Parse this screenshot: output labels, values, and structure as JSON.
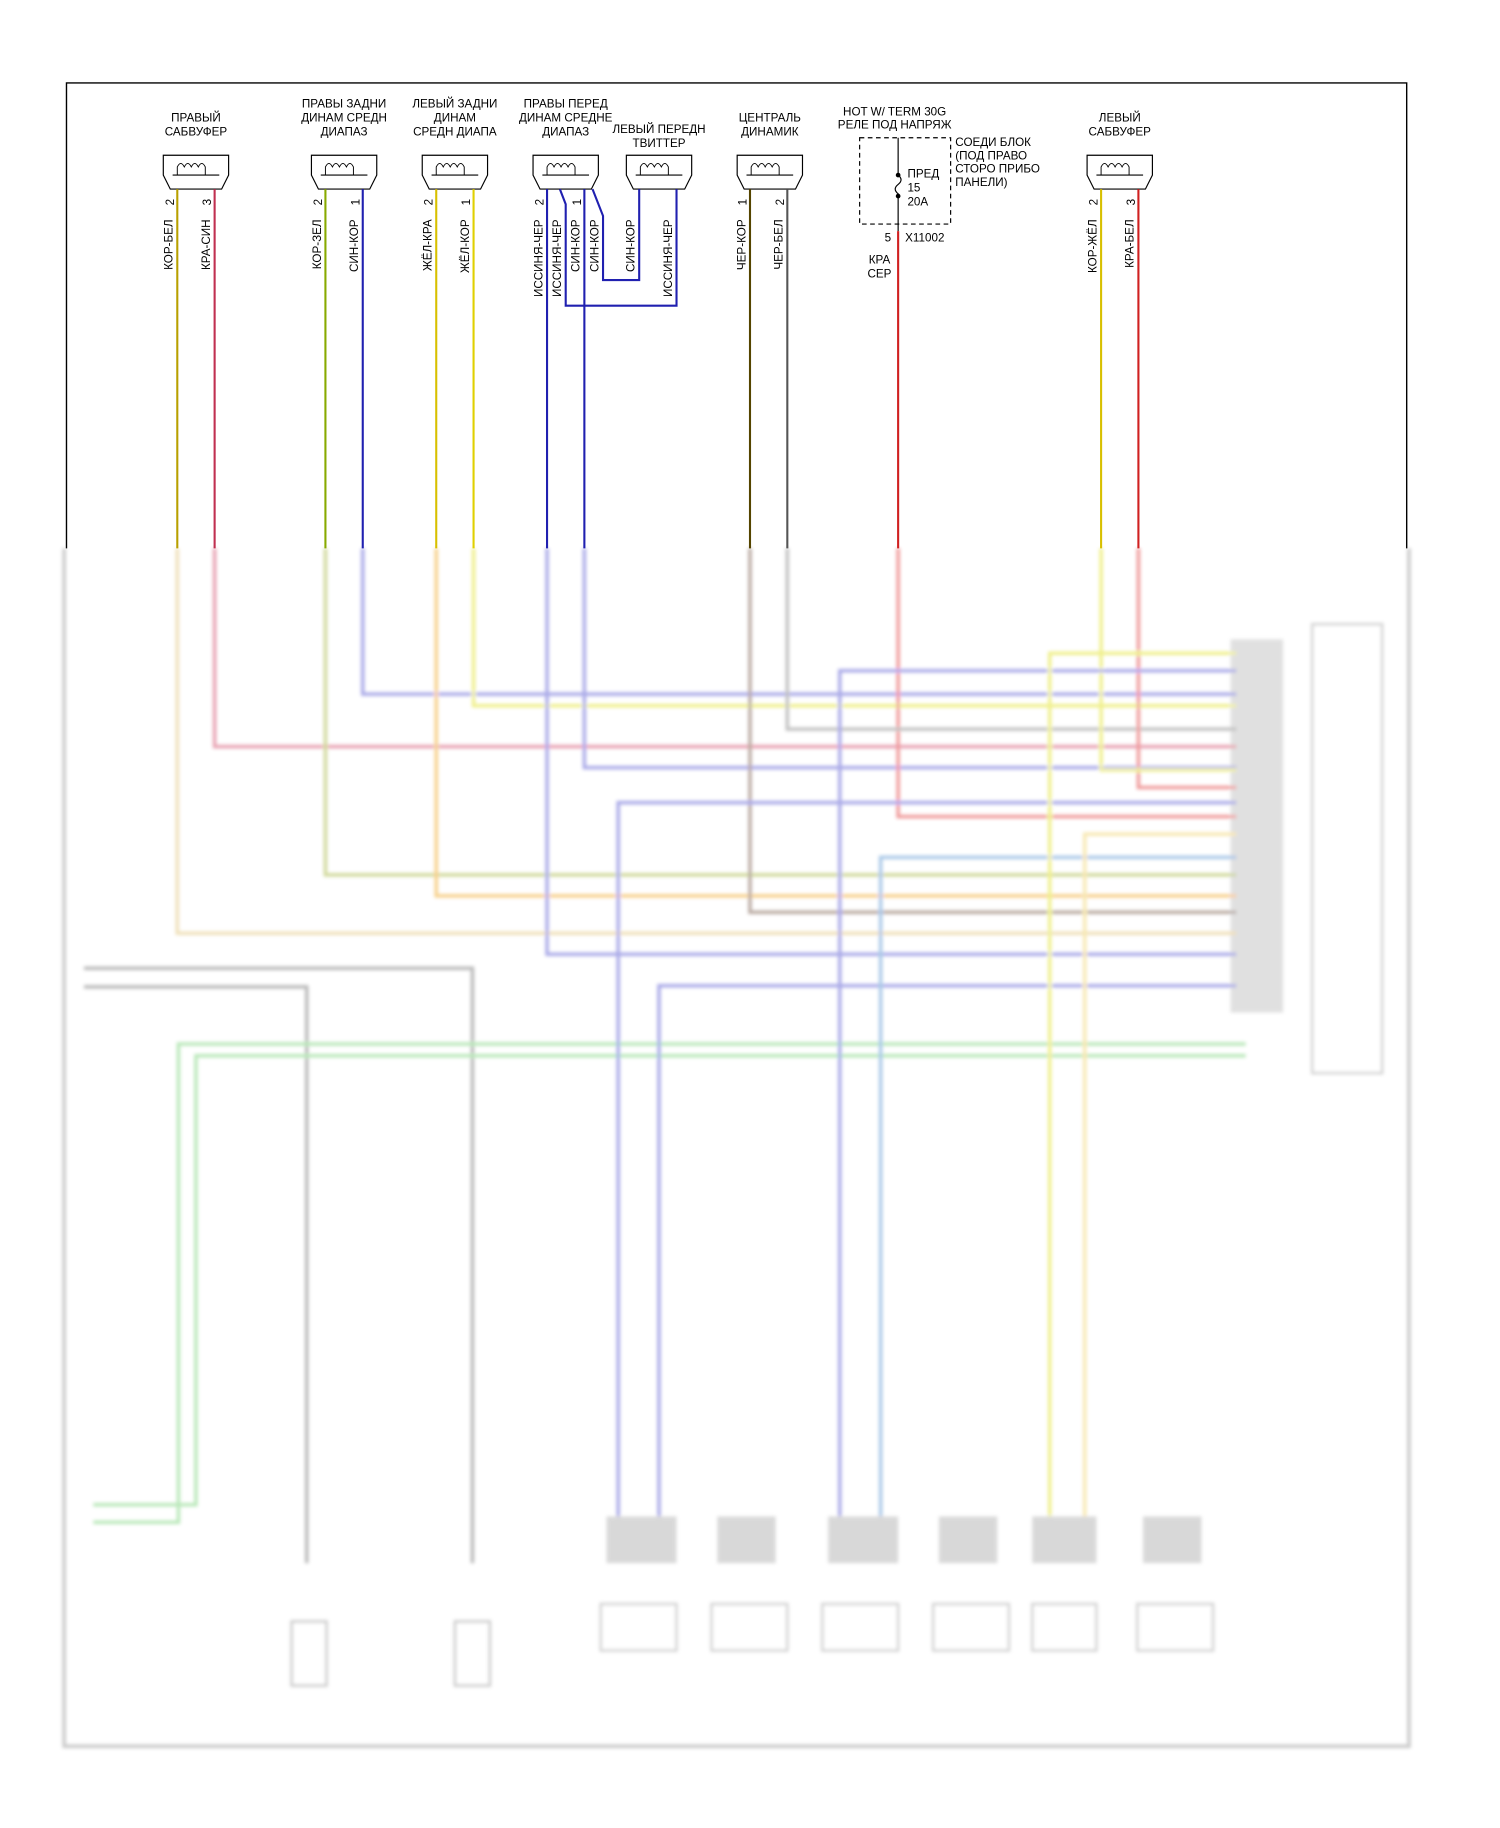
{
  "components": [
    {
      "label": [
        "ПРАВЫЙ",
        "САБВУФЕР"
      ],
      "pins": [
        "2",
        "3"
      ]
    },
    {
      "label": [
        "ПРАВЫ ЗАДНИ",
        "ДИНАМ СРЕДН",
        "ДИАПАЗ"
      ],
      "pins": [
        "2",
        "1"
      ]
    },
    {
      "label": [
        "ЛЕВЫЙ ЗАДНИ",
        "ДИНАМ",
        "СРЕДН ДИАПА"
      ],
      "pins": [
        "2",
        "1"
      ]
    },
    {
      "label": [
        "ПРАВЫ ПЕРЕД",
        "ДИНАМ СРЕДНЕ",
        "ДИАПАЗ"
      ],
      "pins": [
        "2",
        "1"
      ]
    },
    {
      "label": [
        "ЛЕВЫЙ ПЕРЕДН",
        "ТВИТТЕР"
      ],
      "pins": []
    },
    {
      "label": [
        "ЦЕНТРАЛЬ",
        "ДИНАМИК"
      ],
      "pins": [
        "1",
        "2"
      ]
    },
    {
      "label": [
        "ЛЕВЫЙ",
        "САБВУФЕР"
      ],
      "pins": [
        "2",
        "3"
      ]
    }
  ],
  "wires": [
    "КОР-БЕЛ",
    "КРА-СИН",
    "КОР-ЗЕЛ",
    "СИН-КОР",
    "ЖЁЛ-КРА",
    "ЖЁЛ-КОР",
    "ИССИНЯ-ЧЕР",
    "ИССИНЯ-ЧЕР",
    "СИН-КОР",
    "СИН-КОР",
    "СИН-КОР",
    "ИССИНЯ-ЧЕР",
    "ЧЕР-КОР",
    "ЧЕР-БЕЛ",
    "КОР-ЖЁЛ",
    "КРА-БЕЛ"
  ],
  "fuse_block": {
    "title": [
      "HOT W/ TERM 30G",
      "РЕЛЕ ПОД НАПРЯЖ"
    ],
    "location": [
      "СОЕДИ БЛОК",
      "(ПОД ПРАВО",
      "СТОРО ПРИБО",
      "ПАНЕЛИ)"
    ],
    "fuse": [
      "ПРЕД",
      "15",
      "20A"
    ],
    "pin": "5",
    "connector": "X11002",
    "wire": [
      "КРА",
      "СЕР"
    ]
  }
}
